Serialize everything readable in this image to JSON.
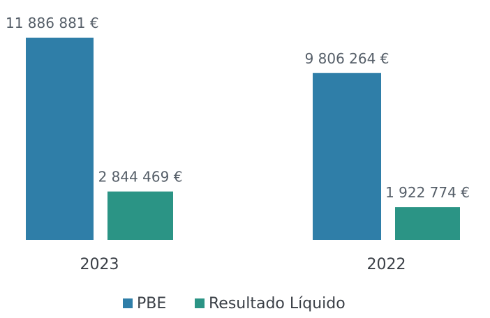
{
  "chart_data": {
    "type": "bar",
    "categories": [
      "2023",
      "2022"
    ],
    "series": [
      {
        "name": "PBE",
        "color": "#2f7ea8",
        "values": [
          11886881,
          9806264
        ],
        "labels": [
          "11 886 881 €",
          "9 806 264 €"
        ]
      },
      {
        "name": "Resultado Líquido",
        "color": "#2b9485",
        "values": [
          2844469,
          1922774
        ],
        "labels": [
          "2 844 469 €",
          "1 922 774 €"
        ]
      }
    ],
    "title": "",
    "xlabel": "",
    "ylabel": "",
    "ylim": [
      0,
      11886881
    ],
    "grid": false,
    "legend": "bottom"
  }
}
